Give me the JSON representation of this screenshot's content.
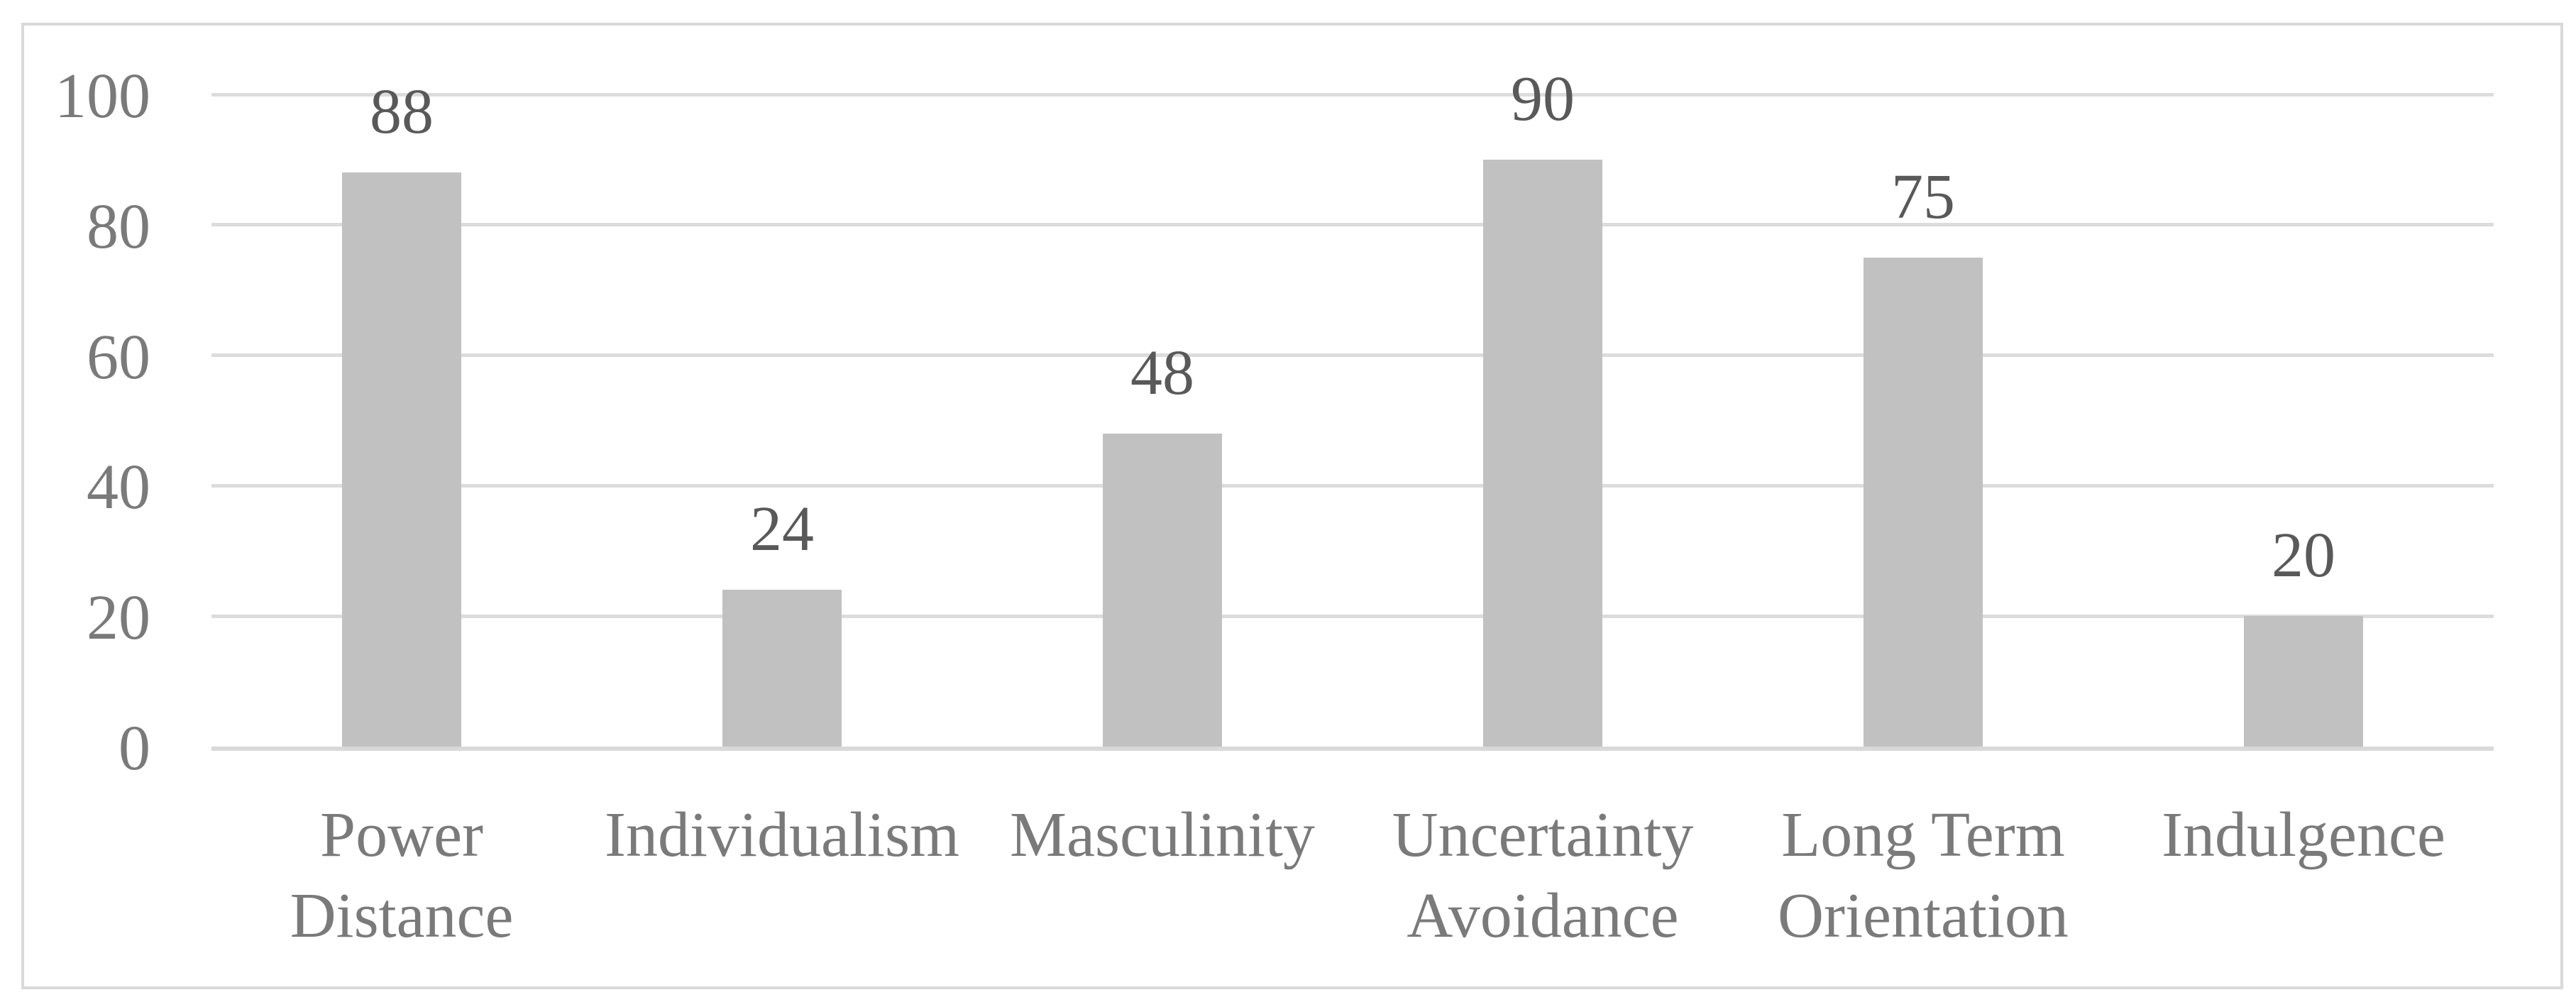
{
  "chart_data": {
    "type": "bar",
    "title": "",
    "xlabel": "",
    "ylabel": "",
    "categories": [
      "Power Distance",
      "Individualism",
      "Masculinity",
      "Uncertainty Avoidance",
      "Long Term Orientation",
      "Indulgence"
    ],
    "category_lines": [
      [
        "Power",
        "Distance"
      ],
      [
        "Individualism"
      ],
      [
        "Masculinity"
      ],
      [
        "Uncertainty",
        "Avoidance"
      ],
      [
        "Long Term",
        "Orientation"
      ],
      [
        "Indulgence"
      ]
    ],
    "values": [
      88,
      24,
      48,
      90,
      75,
      20
    ],
    "data_labels": [
      "88",
      "24",
      "48",
      "90",
      "75",
      "20"
    ],
    "ylim": [
      0,
      100
    ],
    "yticks": [
      0,
      20,
      40,
      60,
      80,
      100
    ],
    "grid": true,
    "legend": "none",
    "colors": {
      "bar_fill": "#C1C1C1",
      "gridline": "#DCDCDC",
      "axis_line": "#D9D9D9",
      "frame_border": "#D9D9D9",
      "tick_label": "#7A7A7A",
      "category_label": "#7A7A7A",
      "data_label": "#595959",
      "background": "#FFFFFF"
    }
  }
}
